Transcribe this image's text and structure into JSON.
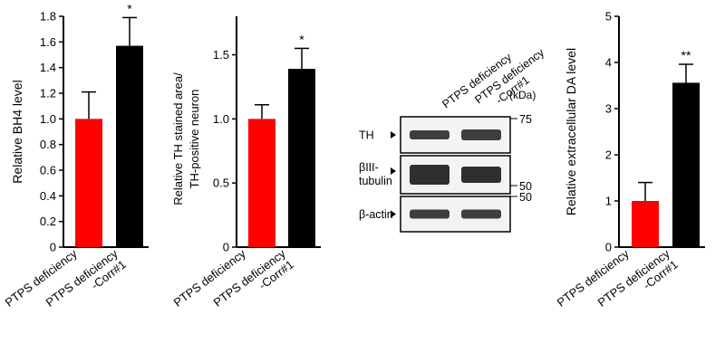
{
  "chart_data": [
    {
      "type": "bar",
      "ylabel": "Relative BH4 level",
      "ylim": [
        0,
        1.8
      ],
      "yticks": [
        "0",
        "0.2",
        "0.4",
        "0.6",
        "0.8",
        "1.0",
        "1.2",
        "1.4",
        "1.6",
        "1.8"
      ],
      "categories": [
        "PTPS deficiency",
        "PTPS deficiency -Corr#1"
      ],
      "category_lines": [
        [
          "PTPS deficiency"
        ],
        [
          "PTPS deficiency",
          "-Corr#1"
        ]
      ],
      "values": [
        1.0,
        1.57
      ],
      "errors": [
        0.21,
        0.22
      ],
      "significance": [
        "",
        "*"
      ],
      "colors": [
        "#ff0000",
        "#000000"
      ]
    },
    {
      "type": "bar",
      "ylabel_lines": [
        "Relative TH stained area/",
        "TH-positive neuron"
      ],
      "ylim": [
        0,
        1.8
      ],
      "yticks": [
        "0",
        "0.5",
        "1.0",
        "1.5"
      ],
      "categories": [
        "PTPS deficiency",
        "PTPS deficiency -Corr#1"
      ],
      "category_lines": [
        [
          "PTPS deficiency"
        ],
        [
          "PTPS deficiency",
          "-Corr#1"
        ]
      ],
      "values": [
        1.0,
        1.39
      ],
      "errors": [
        0.11,
        0.16
      ],
      "significance": [
        "",
        "*"
      ],
      "colors": [
        "#ff0000",
        "#000000"
      ]
    },
    {
      "type": "bar",
      "ylabel": "Relative extracellular DA level",
      "ylim": [
        0,
        5
      ],
      "yticks": [
        "0",
        "1",
        "2",
        "3",
        "4",
        "5"
      ],
      "categories": [
        "PTPS deficiency",
        "PTPS deficiency -Corr#1"
      ],
      "category_lines": [
        [
          "PTPS deficiency"
        ],
        [
          "PTPS deficiency",
          "-Corr#1"
        ]
      ],
      "values": [
        1.0,
        3.56
      ],
      "errors": [
        0.4,
        0.4
      ],
      "significance": [
        "",
        "**"
      ],
      "colors": [
        "#ff0000",
        "#000000"
      ]
    }
  ],
  "blot": {
    "lanes": [
      [
        "PTPS deficiency"
      ],
      [
        "PTPS deficiency",
        "-Corr#1"
      ]
    ],
    "kda_label": "(kDa)",
    "rows": [
      {
        "label": [
          "TH"
        ],
        "markers": [
          "75"
        ]
      },
      {
        "label": [
          "βIII-",
          "tubulin"
        ],
        "markers": [
          "50"
        ]
      },
      {
        "label": [
          "β-actin"
        ],
        "markers": [
          "50"
        ]
      }
    ]
  }
}
